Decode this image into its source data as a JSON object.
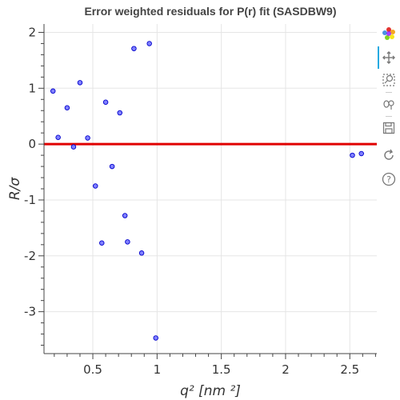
{
  "chart_data": {
    "type": "scatter",
    "title": "Error weighted residuals for P(r) fit (SASDBW9)",
    "xlabel": "q² [nm ²]",
    "ylabel": "R/σ",
    "xlim": [
      0.12,
      2.71
    ],
    "ylim": [
      -3.75,
      2.15
    ],
    "x_ticks": [
      0.5,
      1,
      1.5,
      2,
      2.5
    ],
    "x_tick_labels": [
      "0.5",
      "1",
      "1.5",
      "2",
      "2.5"
    ],
    "y_ticks": [
      2,
      1,
      0,
      -1,
      -2,
      -3
    ],
    "y_tick_labels": [
      "2",
      "1",
      "0",
      "-1",
      "-2",
      "-3"
    ],
    "grid": true,
    "reference_line": {
      "y": 0,
      "color": "#e00000"
    },
    "marker": {
      "fill": "#8080ff",
      "stroke": "#0000cc"
    },
    "points": [
      {
        "x": 0.19,
        "y": 0.95
      },
      {
        "x": 0.23,
        "y": 0.12
      },
      {
        "x": 0.3,
        "y": 0.65
      },
      {
        "x": 0.35,
        "y": -0.05
      },
      {
        "x": 0.4,
        "y": 1.1
      },
      {
        "x": 0.46,
        "y": 0.11
      },
      {
        "x": 0.52,
        "y": -0.75
      },
      {
        "x": 0.57,
        "y": -1.77
      },
      {
        "x": 0.6,
        "y": 0.75
      },
      {
        "x": 0.65,
        "y": -0.4
      },
      {
        "x": 0.71,
        "y": 0.56
      },
      {
        "x": 0.75,
        "y": -1.28
      },
      {
        "x": 0.77,
        "y": -1.75
      },
      {
        "x": 0.82,
        "y": 1.71
      },
      {
        "x": 0.88,
        "y": -1.95
      },
      {
        "x": 0.94,
        "y": 1.8
      },
      {
        "x": 0.99,
        "y": -3.47
      },
      {
        "x": 2.52,
        "y": -0.2
      },
      {
        "x": 2.59,
        "y": -0.17
      }
    ]
  },
  "toolbar": {
    "tools": [
      {
        "name": "bokeh-logo-icon"
      },
      {
        "name": "pan-tool-icon",
        "active": true
      },
      {
        "name": "box-zoom-tool-icon"
      },
      {
        "name": "wheel-zoom-tool-icon"
      },
      {
        "name": "save-tool-icon"
      },
      {
        "name": "reset-tool-icon"
      },
      {
        "name": "help-tool-icon"
      }
    ],
    "active_color": "#26aae1"
  }
}
